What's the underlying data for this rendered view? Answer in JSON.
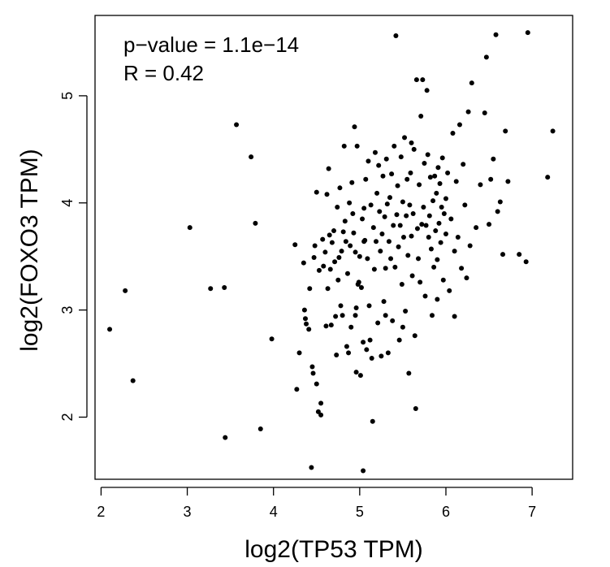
{
  "chart_data": {
    "type": "scatter",
    "xlabel": "log2(TP53 TPM)",
    "ylabel": "log2(FOXO3 TPM)",
    "annotations": [
      "p−value = 1.1e−14",
      "R = 0.42"
    ],
    "xticks": [
      2,
      3,
      4,
      5,
      6,
      7
    ],
    "yticks": [
      2,
      3,
      4,
      5
    ],
    "xlim": [
      1.93,
      7.47
    ],
    "ylim": [
      1.42,
      5.75
    ],
    "grid": false,
    "legend": "none",
    "point_color": "#000000",
    "points": [
      [
        2.1,
        2.82
      ],
      [
        2.28,
        3.18
      ],
      [
        2.37,
        2.34
      ],
      [
        3.03,
        3.77
      ],
      [
        3.27,
        3.2
      ],
      [
        3.43,
        3.21
      ],
      [
        3.44,
        1.81
      ],
      [
        3.57,
        4.73
      ],
      [
        3.74,
        4.43
      ],
      [
        3.79,
        3.81
      ],
      [
        3.85,
        1.89
      ],
      [
        3.98,
        2.73
      ],
      [
        4.25,
        3.61
      ],
      [
        4.27,
        2.26
      ],
      [
        4.3,
        2.6
      ],
      [
        4.35,
        3.44
      ],
      [
        4.36,
        3.0
      ],
      [
        4.37,
        2.92
      ],
      [
        4.38,
        2.87
      ],
      [
        4.41,
        2.82
      ],
      [
        4.42,
        3.2
      ],
      [
        4.44,
        1.53
      ],
      [
        4.45,
        2.47
      ],
      [
        4.46,
        2.41
      ],
      [
        4.47,
        3.49
      ],
      [
        4.48,
        3.6
      ],
      [
        4.5,
        4.1
      ],
      [
        4.5,
        2.31
      ],
      [
        4.52,
        2.05
      ],
      [
        4.53,
        3.37
      ],
      [
        4.55,
        2.13
      ],
      [
        4.55,
        2.02
      ],
      [
        4.57,
        3.66
      ],
      [
        4.58,
        3.41
      ],
      [
        4.6,
        3.54
      ],
      [
        4.61,
        2.85
      ],
      [
        4.62,
        4.08
      ],
      [
        4.63,
        3.2
      ],
      [
        4.64,
        4.32
      ],
      [
        4.65,
        3.7
      ],
      [
        4.66,
        3.38
      ],
      [
        4.67,
        2.86
      ],
      [
        4.68,
        3.63
      ],
      [
        4.7,
        3.74
      ],
      [
        4.71,
        3.45
      ],
      [
        4.72,
        2.94
      ],
      [
        4.73,
        2.58
      ],
      [
        4.74,
        3.96
      ],
      [
        4.75,
        3.28
      ],
      [
        4.76,
        3.49
      ],
      [
        4.77,
        4.14
      ],
      [
        4.78,
        3.04
      ],
      [
        4.79,
        3.55
      ],
      [
        4.8,
        2.95
      ],
      [
        4.81,
        3.73
      ],
      [
        4.82,
        4.53
      ],
      [
        4.83,
        3.83
      ],
      [
        4.84,
        3.64
      ],
      [
        4.85,
        2.66
      ],
      [
        4.86,
        3.34
      ],
      [
        4.87,
        2.6
      ],
      [
        4.88,
        4.0
      ],
      [
        4.89,
        3.6
      ],
      [
        4.9,
        2.84
      ],
      [
        4.91,
        4.19
      ],
      [
        4.92,
        3.9
      ],
      [
        4.93,
        3.72
      ],
      [
        4.94,
        4.71
      ],
      [
        4.95,
        3.54
      ],
      [
        4.96,
        3.02
      ],
      [
        4.96,
        2.42
      ],
      [
        4.97,
        4.53
      ],
      [
        4.98,
        3.24
      ],
      [
        4.99,
        3.26
      ],
      [
        5.0,
        3.5
      ],
      [
        5.01,
        2.39
      ],
      [
        5.02,
        3.21
      ],
      [
        5.03,
        3.85
      ],
      [
        5.04,
        2.7
      ],
      [
        5.04,
        1.5
      ],
      [
        5.05,
        3.95
      ],
      [
        5.06,
        3.65
      ],
      [
        5.07,
        4.22
      ],
      [
        5.08,
        2.63
      ],
      [
        5.09,
        3.48
      ],
      [
        5.1,
        4.39
      ],
      [
        5.11,
        3.04
      ],
      [
        5.12,
        2.72
      ],
      [
        5.13,
        3.98
      ],
      [
        5.14,
        2.55
      ],
      [
        5.15,
        1.96
      ],
      [
        5.16,
        3.77
      ],
      [
        5.17,
        3.38
      ],
      [
        5.18,
        4.47
      ],
      [
        5.19,
        3.64
      ],
      [
        5.2,
        4.09
      ],
      [
        5.21,
        2.88
      ],
      [
        5.22,
        4.35
      ],
      [
        5.23,
        3.92
      ],
      [
        5.24,
        3.55
      ],
      [
        5.25,
        2.57
      ],
      [
        5.26,
        3.71
      ],
      [
        5.27,
        4.25
      ],
      [
        5.28,
        3.08
      ],
      [
        5.29,
        3.87
      ],
      [
        5.3,
        3.39
      ],
      [
        5.31,
        4.41
      ],
      [
        5.32,
        3.99
      ],
      [
        5.33,
        2.6
      ],
      [
        5.34,
        3.64
      ],
      [
        5.35,
        4.05
      ],
      [
        5.36,
        3.48
      ],
      [
        5.37,
        4.27
      ],
      [
        5.38,
        2.9
      ],
      [
        5.39,
        3.79
      ],
      [
        5.4,
        4.53
      ],
      [
        5.41,
        3.4
      ],
      [
        5.42,
        5.56
      ],
      [
        5.43,
        3.89
      ],
      [
        5.44,
        4.16
      ],
      [
        5.45,
        3.59
      ],
      [
        5.46,
        2.72
      ],
      [
        5.47,
        3.79
      ],
      [
        5.48,
        4.43
      ],
      [
        5.49,
        3.24
      ],
      [
        5.5,
        4.01
      ],
      [
        5.51,
        3.68
      ],
      [
        5.52,
        4.61
      ],
      [
        5.53,
        2.99
      ],
      [
        5.54,
        3.88
      ],
      [
        5.55,
        4.22
      ],
      [
        5.56,
        3.51
      ],
      [
        5.57,
        2.41
      ],
      [
        5.58,
        3.98
      ],
      [
        5.59,
        4.28
      ],
      [
        5.6,
        3.69
      ],
      [
        5.61,
        3.32
      ],
      [
        5.62,
        3.9
      ],
      [
        5.63,
        4.5
      ],
      [
        5.64,
        2.76
      ],
      [
        5.65,
        2.08
      ],
      [
        5.66,
        5.15
      ],
      [
        5.67,
        3.76
      ],
      [
        5.68,
        3.48
      ],
      [
        5.69,
        4.17
      ],
      [
        5.7,
        3.26
      ],
      [
        5.71,
        4.81
      ],
      [
        5.72,
        3.8
      ],
      [
        5.73,
        5.15
      ],
      [
        5.74,
        3.96
      ],
      [
        5.75,
        4.37
      ],
      [
        5.76,
        3.13
      ],
      [
        5.77,
        3.79
      ],
      [
        5.78,
        5.05
      ],
      [
        5.79,
        4.45
      ],
      [
        5.8,
        3.68
      ],
      [
        5.81,
        3.88
      ],
      [
        5.82,
        4.24
      ],
      [
        5.83,
        3.57
      ],
      [
        5.84,
        2.95
      ],
      [
        5.85,
        4.02
      ],
      [
        5.86,
        3.4
      ],
      [
        5.87,
        4.25
      ],
      [
        5.88,
        3.74
      ],
      [
        5.89,
        4.09
      ],
      [
        5.9,
        3.47
      ],
      [
        5.91,
        4.33
      ],
      [
        5.92,
        3.81
      ],
      [
        5.93,
        4.18
      ],
      [
        5.94,
        3.63
      ],
      [
        5.95,
        3.96
      ],
      [
        5.96,
        4.42
      ],
      [
        5.97,
        3.28
      ],
      [
        5.98,
        3.9
      ],
      [
        6.0,
        3.71
      ],
      [
        6.02,
        4.28
      ],
      [
        6.04,
        3.18
      ],
      [
        6.06,
        3.85
      ],
      [
        6.08,
        4.65
      ],
      [
        6.1,
        3.55
      ],
      [
        6.12,
        4.2
      ],
      [
        6.14,
        3.68
      ],
      [
        6.16,
        4.73
      ],
      [
        6.18,
        3.39
      ],
      [
        6.2,
        4.36
      ],
      [
        6.22,
        3.98
      ],
      [
        6.24,
        3.3
      ],
      [
        6.26,
        4.85
      ],
      [
        6.28,
        3.6
      ],
      [
        6.3,
        5.12
      ],
      [
        6.35,
        3.77
      ],
      [
        6.4,
        4.17
      ],
      [
        6.45,
        4.84
      ],
      [
        6.47,
        5.36
      ],
      [
        6.5,
        3.8
      ],
      [
        6.52,
        4.22
      ],
      [
        6.55,
        4.41
      ],
      [
        6.58,
        5.57
      ],
      [
        6.6,
        3.92
      ],
      [
        6.63,
        4.01
      ],
      [
        6.66,
        3.52
      ],
      [
        6.69,
        4.67
      ],
      [
        6.72,
        4.2
      ],
      [
        6.85,
        3.52
      ],
      [
        6.93,
        3.45
      ],
      [
        6.95,
        5.59
      ],
      [
        7.18,
        4.24
      ],
      [
        7.24,
        4.67
      ],
      [
        6.1,
        2.94
      ],
      [
        5.5,
        2.84
      ],
      [
        5.3,
        2.95
      ],
      [
        4.95,
        2.95
      ],
      [
        5.05,
        3.64
      ],
      [
        5.6,
        4.56
      ],
      [
        6.0,
        4.04
      ],
      [
        5.9,
        3.1
      ]
    ]
  }
}
